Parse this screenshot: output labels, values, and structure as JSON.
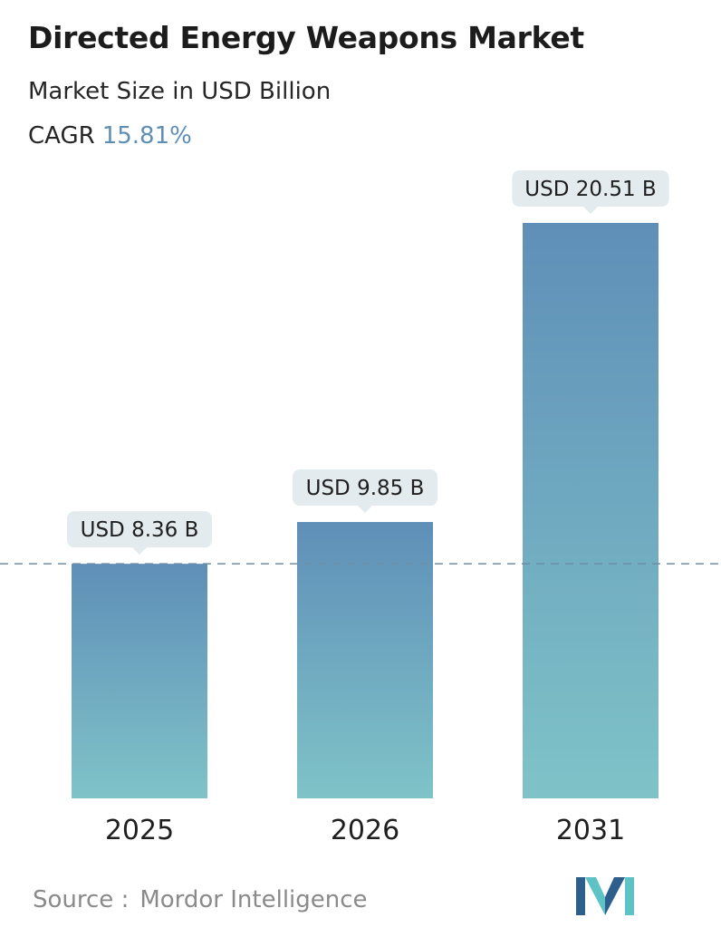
{
  "header": {
    "title": "Directed Energy Weapons Market",
    "subtitle": "Market Size in USD Billion",
    "cagr_label": "CAGR",
    "cagr_value": "15.81%"
  },
  "chart_data": {
    "type": "bar",
    "title": "Directed Energy Weapons Market",
    "ylabel": "Market Size in USD Billion",
    "categories": [
      "2025",
      "2026",
      "2031"
    ],
    "values": [
      8.36,
      9.85,
      20.51
    ],
    "value_labels": [
      "USD 8.36 B",
      "USD 9.85 B",
      "USD 20.51 B"
    ],
    "reference_line_value": 8.36,
    "ylim": [
      0,
      20.51
    ],
    "grid": false,
    "legend": "none"
  },
  "footer": {
    "source_label": "Source :",
    "source_name": "Mordor Intelligence",
    "logo_icon": "mordor-intelligence-logo-icon"
  },
  "colors": {
    "bar_top": "#5f8fb8",
    "bar_bottom": "#7fc3c8",
    "label_bg": "#e3ebee",
    "dashed_line": "#6f8fa8",
    "cagr_value": "#5f8fb4",
    "logo_dark": "#2e5e8c",
    "logo_light": "#5ec3c4"
  }
}
